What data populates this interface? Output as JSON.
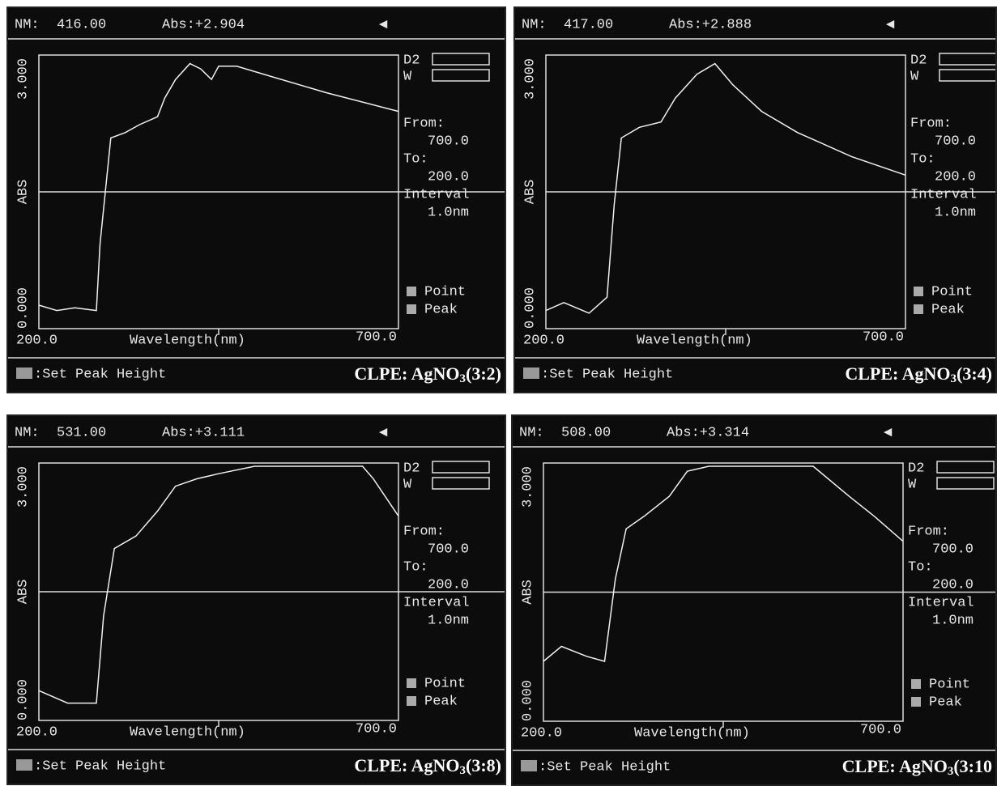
{
  "panels": [
    {
      "nm_label": "NM:",
      "nm": "416.00",
      "abs": "Abs:+2.904",
      "y_top": "3.000",
      "y_label": "ABS",
      "y_bottom": "0.000",
      "x_start": "200.0",
      "x_label": "Wavelength(nm)",
      "x_end": "700.0",
      "d2": "D2",
      "w": "W",
      "from_label": "From:",
      "from": "700.0",
      "to_label": "To:",
      "to": "200.0",
      "interval_label": "Interval",
      "interval": "1.0nm",
      "point": "Point",
      "peak": "Peak",
      "footer": ":Set Peak Height",
      "caption": {
        "prefix": "CLPE: AgNO",
        "subscript": "3",
        "suffix": "(3:2)"
      }
    },
    {
      "nm_label": "NM:",
      "nm": "417.00",
      "abs": "Abs:+2.888",
      "y_top": "3.000",
      "y_label": "ABS",
      "y_bottom": "0.000",
      "x_start": "200.0",
      "x_label": "Wavelength(nm)",
      "x_end": "700.0",
      "d2": "D2",
      "w": "W",
      "from_label": "From:",
      "from": "700.0",
      "to_label": "To:",
      "to": "200.0",
      "interval_label": "Interval",
      "interval": "1.0nm",
      "point": "Point",
      "peak": "Peak",
      "footer": ":Set Peak Height",
      "caption": {
        "prefix": "CLPE: AgNO",
        "subscript": "3",
        "suffix": "(3:4)"
      }
    },
    {
      "nm_label": "NM:",
      "nm": "531.00",
      "abs": "Abs:+3.111",
      "y_top": "3.000",
      "y_label": "ABS",
      "y_bottom": "0.000",
      "x_start": "200.0",
      "x_label": "Wavelength(nm)",
      "x_end": "700.0",
      "d2": "D2",
      "w": "W",
      "from_label": "From:",
      "from": "700.0",
      "to_label": "To:",
      "to": "200.0",
      "interval_label": "Interval",
      "interval": "1.0nm",
      "point": "Point",
      "peak": "Peak",
      "footer": ":Set Peak Height",
      "caption": {
        "prefix": "CLPE: AgNO",
        "subscript": "3",
        "suffix": "(3:8)"
      }
    },
    {
      "nm_label": "NM:",
      "nm": "508.00",
      "abs": "Abs:+3.314",
      "y_top": "3.000",
      "y_label": "ABS",
      "y_bottom": "0.000",
      "x_start": "200.0",
      "x_label": "Wavelength(nm)",
      "x_end": "700.0",
      "d2": "D2",
      "w": "W",
      "from_label": "From:",
      "from": "700.0",
      "to_label": "To:",
      "to": "200.0",
      "interval_label": "Interval",
      "interval": "1.0nm",
      "point": "Point",
      "peak": "Peak",
      "footer": ":Set Peak Height",
      "caption": {
        "prefix": "CLPE: AgNO",
        "subscript": "3",
        "suffix": "(3:10"
      }
    }
  ]
}
